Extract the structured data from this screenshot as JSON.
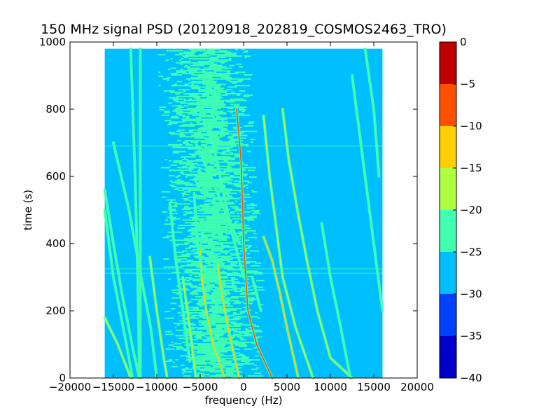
{
  "chart_data": {
    "type": "heatmap",
    "title": "150 MHz signal PSD (20120918_202819_COSMOS2463_TRO)",
    "xlabel": "frequency (Hz)",
    "ylabel": "time (s)",
    "xlim": [
      -20000,
      20000
    ],
    "ylim": [
      0,
      1000
    ],
    "xticks": [
      -20000,
      -15000,
      -10000,
      -5000,
      0,
      5000,
      10000,
      15000,
      20000
    ],
    "xtick_labels": [
      "−20000",
      "−15000",
      "−10000",
      "−5000",
      "0",
      "5000",
      "10000",
      "15000",
      "20000"
    ],
    "yticks": [
      0,
      200,
      400,
      600,
      800,
      1000
    ],
    "ytick_labels": [
      "0",
      "200",
      "400",
      "600",
      "800",
      "1000"
    ],
    "data_extent": {
      "x": [
        -16000,
        16000
      ],
      "y": [
        0,
        980
      ]
    },
    "background_level": -27.5,
    "noise_band": {
      "center_start": -3500,
      "center_end": -4500,
      "halfwidth": 4500,
      "level": -23
    },
    "bright_lines": [
      {
        "points": [
          [
            -800,
            800
          ],
          [
            -300,
            650
          ],
          [
            -100,
            500
          ],
          [
            0,
            400
          ],
          [
            500,
            200
          ],
          [
            1500,
            100
          ],
          [
            3300,
            0
          ]
        ],
        "level": -5
      },
      {
        "points": [
          [
            2300,
            420
          ],
          [
            3300,
            350
          ],
          [
            4200,
            250
          ],
          [
            5000,
            150
          ],
          [
            6300,
            0
          ]
        ],
        "level": -12
      },
      {
        "points": [
          [
            -5000,
            380
          ],
          [
            -4800,
            300
          ],
          [
            -4300,
            200
          ],
          [
            -3500,
            100
          ],
          [
            -2200,
            0
          ]
        ],
        "level": -12
      },
      {
        "points": [
          [
            -3000,
            340
          ],
          [
            -2500,
            250
          ],
          [
            -1800,
            150
          ],
          [
            -500,
            0
          ]
        ],
        "level": -12
      },
      {
        "points": [
          [
            2300,
            780
          ],
          [
            3000,
            600
          ],
          [
            3500,
            500
          ],
          [
            4500,
            300
          ],
          [
            6000,
            150
          ],
          [
            8000,
            0
          ]
        ],
        "level": -18
      },
      {
        "points": [
          [
            4500,
            800
          ],
          [
            5200,
            650
          ],
          [
            6200,
            500
          ],
          [
            7300,
            350
          ],
          [
            8500,
            200
          ],
          [
            10000,
            60
          ],
          [
            12500,
            0
          ]
        ],
        "level": -18
      },
      {
        "points": [
          [
            14000,
            980
          ],
          [
            15000,
            800
          ],
          [
            15600,
            600
          ]
        ],
        "level": -20
      },
      {
        "points": [
          [
            12500,
            900
          ],
          [
            13500,
            700
          ],
          [
            14500,
            500
          ],
          [
            15500,
            300
          ],
          [
            16000,
            200
          ]
        ],
        "level": -20
      },
      {
        "points": [
          [
            -5500,
            700
          ],
          [
            -3800,
            600
          ],
          [
            -2200,
            500
          ],
          [
            -500,
            400
          ]
        ],
        "level": -20
      },
      {
        "points": [
          [
            -4000,
            750
          ],
          [
            -2700,
            600
          ],
          [
            -1500,
            450
          ],
          [
            0,
            300
          ]
        ],
        "level": -20
      },
      {
        "points": [
          [
            -16000,
            180
          ],
          [
            -14500,
            100
          ],
          [
            -13000,
            0
          ]
        ],
        "level": -18
      },
      {
        "points": [
          [
            -16000,
            560
          ],
          [
            -15000,
            400
          ],
          [
            -14000,
            250
          ],
          [
            -12700,
            80
          ],
          [
            -12000,
            0
          ]
        ],
        "level": -20
      },
      {
        "points": [
          [
            -16000,
            500
          ],
          [
            -15000,
            300
          ],
          [
            -13500,
            100
          ],
          [
            -12800,
            0
          ]
        ],
        "level": -20
      },
      {
        "points": [
          [
            -15000,
            700
          ],
          [
            -13200,
            500
          ],
          [
            -11800,
            300
          ],
          [
            -10700,
            150
          ],
          [
            -10000,
            0
          ]
        ],
        "level": -22
      },
      {
        "points": [
          [
            -10800,
            360
          ],
          [
            -10000,
            200
          ],
          [
            -9200,
            60
          ],
          [
            -8800,
            0
          ]
        ],
        "level": -18
      },
      {
        "points": [
          [
            -13000,
            980
          ],
          [
            -12500,
            600
          ],
          [
            -12200,
            300
          ],
          [
            -12000,
            0
          ]
        ],
        "level": -22
      },
      {
        "points": [
          [
            -11900,
            980
          ],
          [
            -11900,
            0
          ]
        ],
        "level": -22
      },
      {
        "points": [
          [
            -7000,
            300
          ],
          [
            -6200,
            150
          ],
          [
            -5500,
            0
          ]
        ],
        "level": -18
      },
      {
        "points": [
          [
            -8500,
            520
          ],
          [
            -7800,
            350
          ],
          [
            -7000,
            200
          ],
          [
            -6200,
            50
          ]
        ],
        "level": -20
      },
      {
        "points": [
          [
            -5700,
            550
          ],
          [
            -5300,
            400
          ],
          [
            -5000,
            350
          ]
        ],
        "level": -20
      },
      {
        "points": [
          [
            9000,
            460
          ],
          [
            10000,
            300
          ],
          [
            11200,
            150
          ],
          [
            12300,
            0
          ]
        ],
        "level": -22
      },
      {
        "points": [
          [
            1000,
            300
          ],
          [
            1500,
            250
          ],
          [
            2000,
            200
          ]
        ],
        "level": -22
      }
    ],
    "hlines": [
      {
        "y": 690,
        "level": -24
      },
      {
        "y": 325,
        "level": -24
      },
      {
        "y": 312,
        "level": -24
      }
    ],
    "colorbar": {
      "ticks": [
        0,
        -5,
        -10,
        -15,
        -20,
        -25,
        -30,
        -35,
        -40
      ],
      "tick_labels": [
        "0",
        "−5",
        "−10",
        "−15",
        "−20",
        "−25",
        "−30",
        "−35",
        "−40"
      ],
      "bins": [
        {
          "from": -40,
          "to": -35,
          "color": "#0000c8"
        },
        {
          "from": -35,
          "to": -30,
          "color": "#0040ff"
        },
        {
          "from": -30,
          "to": -25,
          "color": "#00bfff"
        },
        {
          "from": -25,
          "to": -20,
          "color": "#40ffb0"
        },
        {
          "from": -20,
          "to": -15,
          "color": "#b0ff40"
        },
        {
          "from": -15,
          "to": -10,
          "color": "#ffcf00"
        },
        {
          "from": -10,
          "to": -5,
          "color": "#ff5000"
        },
        {
          "from": -5,
          "to": 0,
          "color": "#c00000"
        }
      ]
    }
  }
}
